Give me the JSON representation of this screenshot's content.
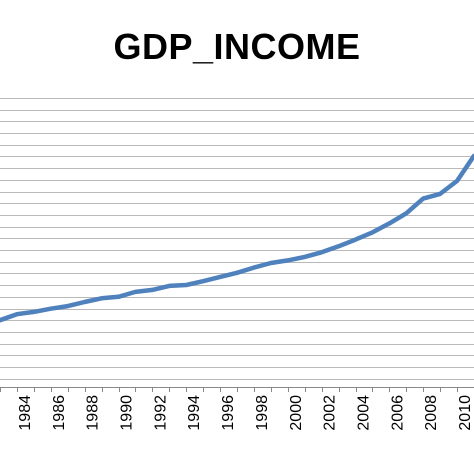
{
  "chart_data": {
    "type": "line",
    "title": "GDP_INCOME",
    "xlabel": "",
    "ylabel": "",
    "x_tick_labels": [
      "1984",
      "1986",
      "1988",
      "1990",
      "1992",
      "1994",
      "1996",
      "1998",
      "2000",
      "2002",
      "2004",
      "2006",
      "2008",
      "2010"
    ],
    "xlim": [
      1983.0,
      2011.0
    ],
    "ylim": [
      0,
      100
    ],
    "grid": "horizontal",
    "legend": "none",
    "series": [
      {
        "color": "#4f81bd",
        "x": [
          1983.0,
          1984.0,
          1985.0,
          1986.0,
          1987.0,
          1988.0,
          1989.0,
          1990.0,
          1991.0,
          1992.0,
          1993.0,
          1994.0,
          1995.0,
          1996.0,
          1997.0,
          1998.0,
          1999.0,
          2000.0,
          2001.0,
          2002.0,
          2003.0,
          2004.0,
          2005.0,
          2006.0,
          2007.0,
          2008.0,
          2009.0,
          2010.0,
          2011.0
        ],
        "values": [
          23.1,
          25.2,
          26.0,
          27.1,
          28.0,
          29.4,
          30.7,
          31.2,
          32.9,
          33.6,
          35.0,
          35.3,
          36.6,
          38.1,
          39.5,
          41.3,
          42.9,
          43.8,
          45.0,
          46.6,
          48.7,
          51.0,
          53.5,
          56.6,
          60.1,
          65.2,
          66.8,
          71.3,
          80.0
        ]
      }
    ]
  }
}
